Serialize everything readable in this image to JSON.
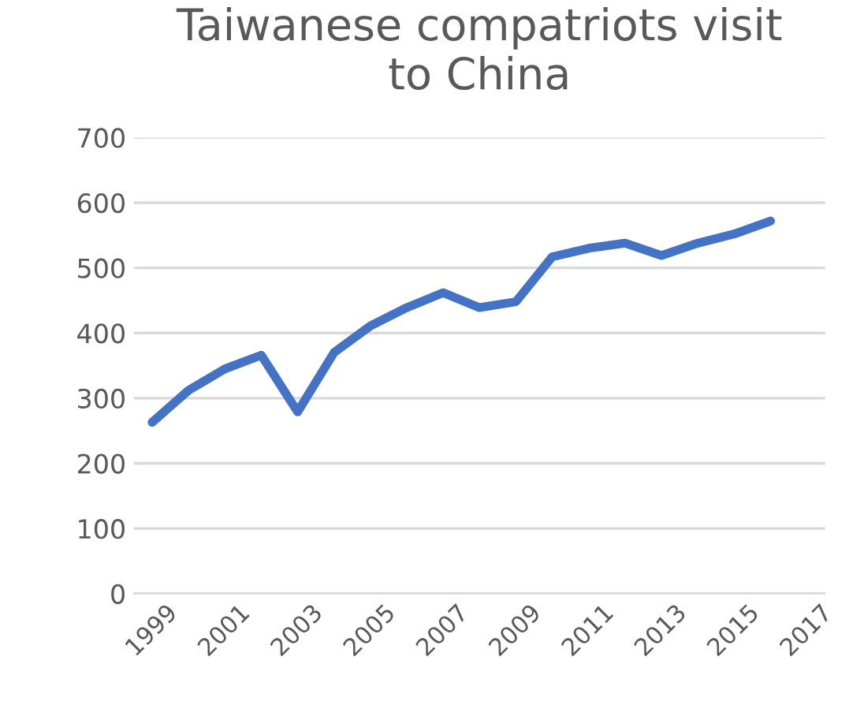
{
  "chart_data": {
    "type": "line",
    "title": "Taiwanese compatriots visit\nto China",
    "categories": [
      "1999",
      null,
      "2001",
      null,
      "2003",
      null,
      "2005",
      null,
      "2007",
      null,
      "2009",
      null,
      "2011",
      null,
      "2013",
      null,
      "2015",
      null,
      "2017"
    ],
    "series": [
      {
        "color": "#4472c4",
        "values": [
          263,
          312,
          345,
          366,
          279,
          370,
          411,
          439,
          462,
          439,
          448,
          517,
          530,
          538,
          519,
          538,
          552,
          572,
          null
        ]
      }
    ],
    "ylim": [
      0,
      700
    ],
    "yticks": [
      0,
      100,
      200,
      300,
      400,
      500,
      600,
      700
    ],
    "grid": "y",
    "marker": "none",
    "line_style": "solid"
  }
}
